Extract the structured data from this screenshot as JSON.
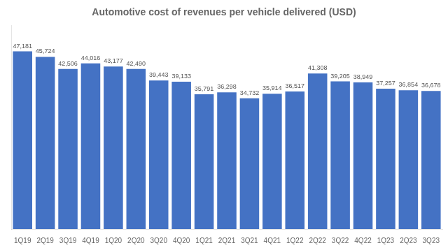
{
  "chart_data": {
    "type": "bar",
    "title": "Automotive cost of revenues per vehicle delivered (USD)",
    "categories": [
      "1Q19",
      "2Q19",
      "3Q19",
      "4Q19",
      "1Q20",
      "2Q20",
      "3Q20",
      "4Q20",
      "1Q21",
      "2Q21",
      "3Q21",
      "4Q21",
      "1Q22",
      "2Q22",
      "3Q22",
      "4Q22",
      "1Q23",
      "2Q23",
      "3Q23"
    ],
    "values": [
      47181,
      45724,
      42506,
      44016,
      43177,
      42490,
      39443,
      39133,
      35791,
      36298,
      34732,
      35914,
      36517,
      41308,
      39205,
      38949,
      37257,
      36854,
      36678
    ],
    "value_labels": [
      "47,181",
      "45,724",
      "42,506",
      "44,016",
      "43,177",
      "42,490",
      "39,443",
      "39,133",
      "35,791",
      "36,298",
      "34,732",
      "35,914",
      "36,517",
      "41,308",
      "39,205",
      "38,949",
      "37,257",
      "36,854",
      "36,678"
    ],
    "color": "#4472C4",
    "ylim": [
      0,
      54000
    ],
    "grid": false,
    "data_labels": true,
    "tick_labels": "x"
  }
}
